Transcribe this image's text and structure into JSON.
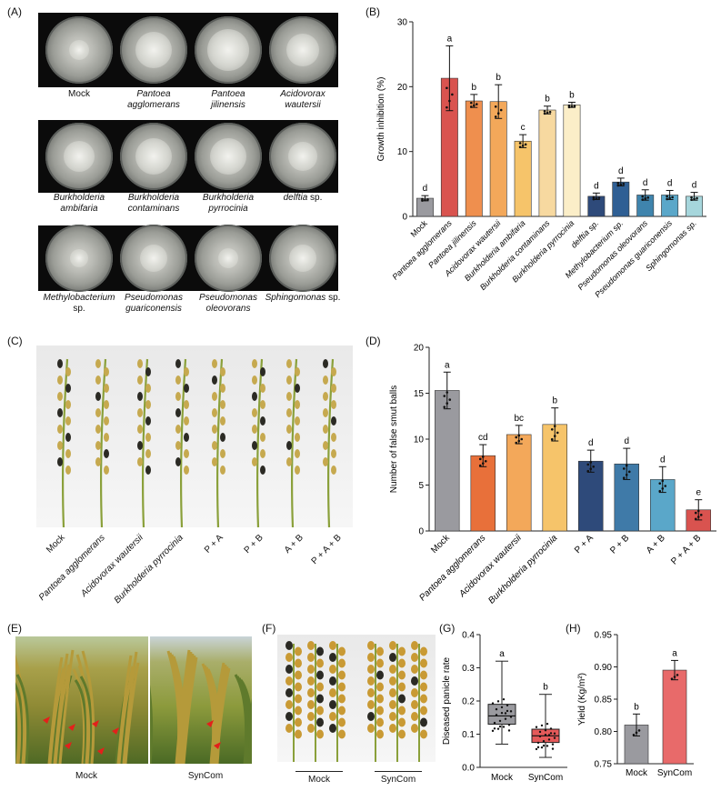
{
  "panels": {
    "A": "(A)",
    "B": "(B)",
    "C": "(C)",
    "D": "(D)",
    "E": "(E)",
    "F": "(F)",
    "G": "(G)",
    "H": "(H)"
  },
  "panelA": {
    "captions": [
      {
        "line1": "Mock",
        "line2": "",
        "italic": false,
        "suffix": ""
      },
      {
        "line1": "Pantoea",
        "line2": "agglomerans",
        "italic": true,
        "suffix": ""
      },
      {
        "line1": "Pantoea",
        "line2": "jilinensis",
        "italic": true,
        "suffix": ""
      },
      {
        "line1": "Acidovorax",
        "line2": "wautersii",
        "italic": true,
        "suffix": ""
      },
      {
        "line1": "Burkholderia",
        "line2": "ambifaria",
        "italic": true,
        "suffix": ""
      },
      {
        "line1": "Burkholderia",
        "line2": "contaminans",
        "italic": true,
        "suffix": ""
      },
      {
        "line1": "Burkholderia",
        "line2": "pyrrocinia",
        "italic": true,
        "suffix": ""
      },
      {
        "line1": "delftia",
        "line2": "",
        "italic": true,
        "suffix": " sp."
      },
      {
        "line1": "Methylobacterium",
        "line2": "",
        "italic": true,
        "suffix": " sp."
      },
      {
        "line1": "Pseudomonas",
        "line2": "guariconensis",
        "italic": true,
        "suffix": ""
      },
      {
        "line1": "Pseudomonas",
        "line2": "oleovorans",
        "italic": true,
        "suffix": ""
      },
      {
        "line1": "Sphingomonas",
        "line2": "",
        "italic": true,
        "suffix": " sp."
      }
    ]
  },
  "panelC": {
    "labels": [
      "Mock",
      "Pantoea agglomerans",
      "Acidovorax wautersii",
      "Burkholderia pyrrocinia",
      "P + A",
      "P + B",
      "A + B",
      "P + A + B"
    ]
  },
  "panelE": {
    "labels": [
      "Mock",
      "SynCom"
    ]
  },
  "panelF": {
    "labels": [
      "Mock",
      "SynCom"
    ]
  },
  "chart_data": [
    {
      "id": "B",
      "type": "bar",
      "ylabel": "Growth inhibition (%)",
      "ylim": [
        0,
        30
      ],
      "yticks": [
        0,
        10,
        20,
        30
      ],
      "categories": [
        "Mock",
        "Pantoea agglomerans",
        "Pantoea jilinensis",
        "Acidovorax wautersii",
        "Burkholderia ambifaria",
        "Burkholderia contaminans",
        "Burkholderia pyrrocinia",
        "delftia sp.",
        "Methylobacterium sp.",
        "Pseudomonas oleovorans",
        "Pseudomonas guariconensis",
        "Sphingomonas sp."
      ],
      "values": [
        2.8,
        21.3,
        17.8,
        17.7,
        11.6,
        16.4,
        17.2,
        3.1,
        5.3,
        3.3,
        3.3,
        3.1
      ],
      "errors": [
        0.4,
        5.0,
        1.0,
        2.6,
        1.0,
        0.6,
        0.4,
        0.5,
        0.6,
        0.8,
        0.7,
        0.6
      ],
      "letters": [
        "d",
        "a",
        "b",
        "b",
        "c",
        "b",
        "b",
        "d",
        "d",
        "d",
        "d",
        "d"
      ],
      "colors": [
        "#9a9a9f",
        "#d9534f",
        "#ef8f4e",
        "#f3a85a",
        "#f6c46a",
        "#f7d9a0",
        "#fbeec8",
        "#2e4a7a",
        "#2f5f94",
        "#3f84ad",
        "#5aa7c9",
        "#a6d6dc"
      ]
    },
    {
      "id": "D",
      "type": "bar",
      "ylabel": "Number of false smut balls",
      "ylim": [
        0,
        20
      ],
      "yticks": [
        0,
        5,
        10,
        15,
        20
      ],
      "categories": [
        "Mock",
        "Pantoea agglomerans",
        "Acidovorax wautersii",
        "Burkholderia pyrrocinia",
        "P + A",
        "P + B",
        "A + B",
        "P + A + B"
      ],
      "values": [
        15.3,
        8.2,
        10.5,
        11.6,
        7.6,
        7.3,
        5.6,
        2.3
      ],
      "errors": [
        2.0,
        1.2,
        1.0,
        1.8,
        1.2,
        1.7,
        1.4,
        1.1
      ],
      "letters": [
        "a",
        "cd",
        "bc",
        "b",
        "d",
        "d",
        "d",
        "e"
      ],
      "colors": [
        "#9a9a9f",
        "#e8703a",
        "#f3a85a",
        "#f6c46a",
        "#2e4a7a",
        "#3f7aa8",
        "#5aa7c9",
        "#d9534f"
      ]
    },
    {
      "id": "G",
      "type": "box",
      "ylabel": "Diseased panicle rate",
      "ylim": [
        0.0,
        0.4
      ],
      "yticks": [
        0.0,
        0.1,
        0.2,
        0.3,
        0.4
      ],
      "categories": [
        "Mock",
        "SynCom"
      ],
      "boxes": [
        {
          "min": 0.07,
          "q1": 0.13,
          "median": 0.155,
          "q3": 0.19,
          "max": 0.32,
          "color": "#9a9a9f",
          "letter": "a"
        },
        {
          "min": 0.03,
          "q1": 0.075,
          "median": 0.095,
          "q3": 0.115,
          "max": 0.22,
          "color": "#e55a5a",
          "letter": "b"
        }
      ]
    },
    {
      "id": "H",
      "type": "bar",
      "ylabel": "Yield (Kg/m²)",
      "ylim": [
        0.75,
        0.95
      ],
      "yticks": [
        0.75,
        0.8,
        0.85,
        0.9,
        0.95
      ],
      "categories": [
        "Mock",
        "SynCom"
      ],
      "values": [
        0.81,
        0.895
      ],
      "errors": [
        0.017,
        0.015
      ],
      "letters": [
        "b",
        "a"
      ],
      "colors": [
        "#9a9a9f",
        "#e86a6a"
      ]
    }
  ]
}
